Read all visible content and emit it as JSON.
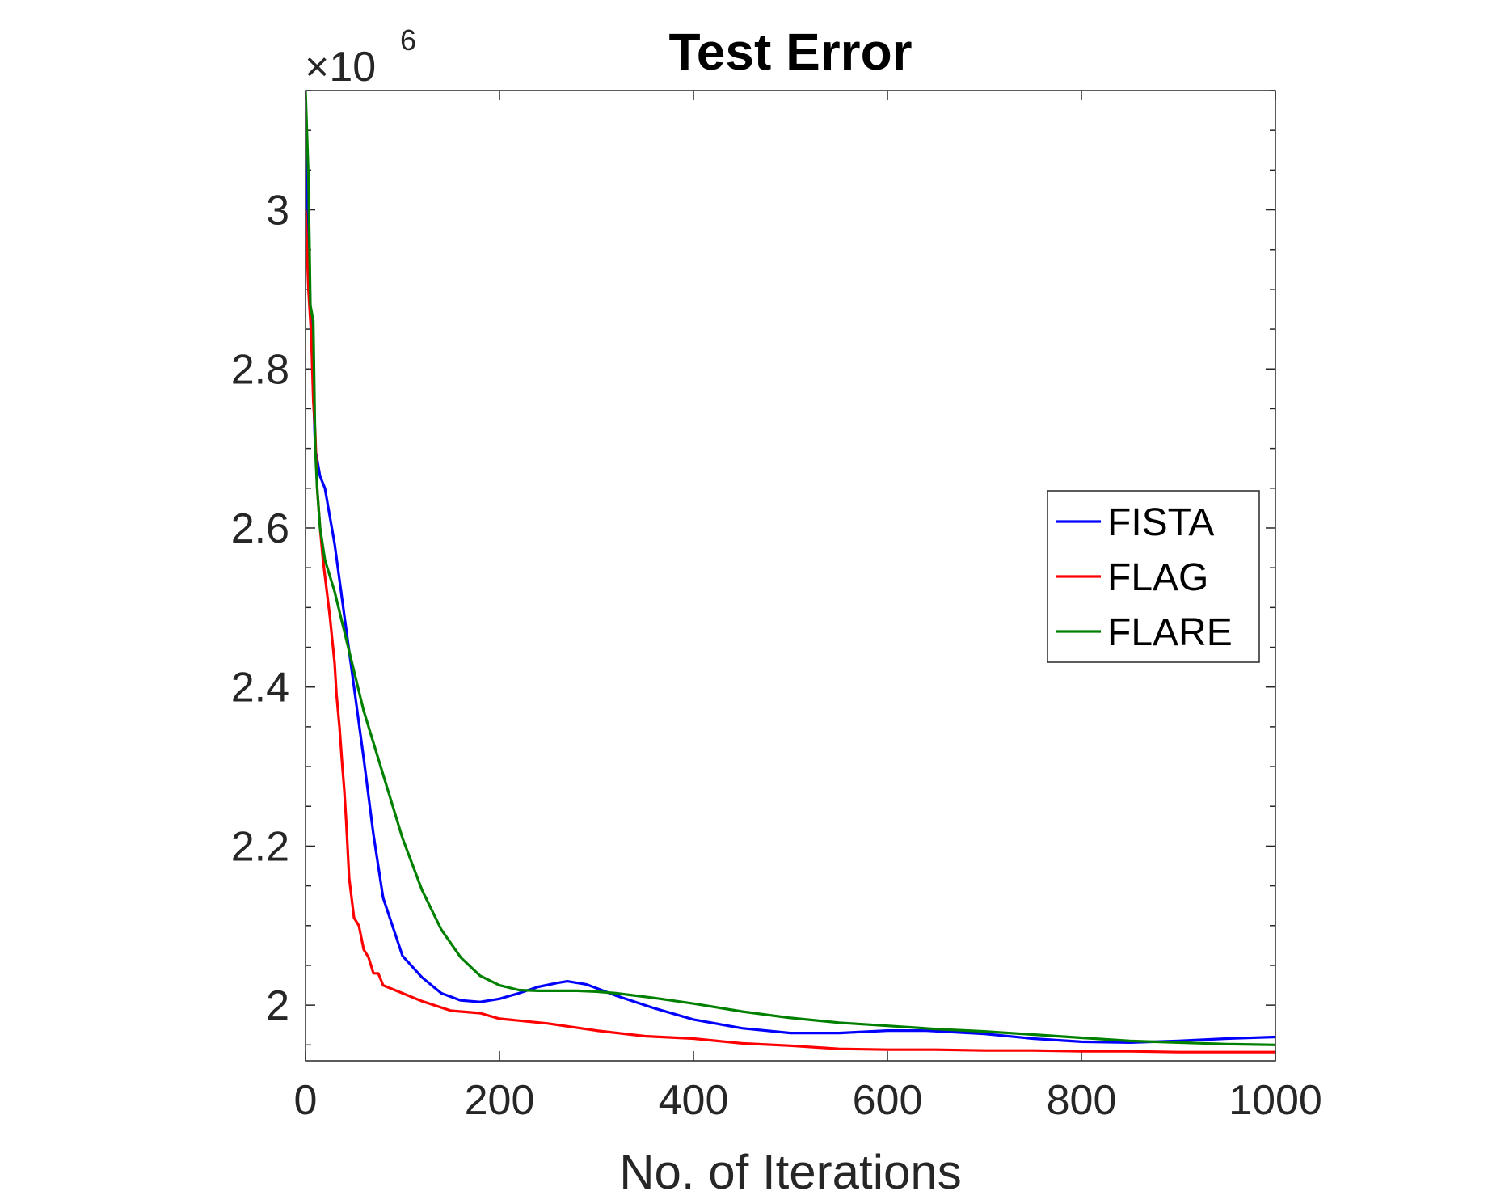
{
  "chart_data": {
    "type": "line",
    "title": "Test Error",
    "xlabel": "No. of Iterations",
    "ylabel": "",
    "xlim": [
      0,
      1000
    ],
    "ylim": [
      1930000,
      3150000
    ],
    "x_ticks": [
      0,
      200,
      400,
      600,
      800,
      1000
    ],
    "x_tick_labels": [
      "0",
      "200",
      "400",
      "600",
      "800",
      "1000"
    ],
    "y_ticks": [
      2000000,
      2200000,
      2400000,
      2600000,
      2800000,
      3000000
    ],
    "y_tick_labels": [
      "2",
      "2.2",
      "2.4",
      "2.6",
      "2.8",
      "3"
    ],
    "y_exponent": {
      "base": "×10",
      "power": "6"
    },
    "grid": false,
    "legend_position": "right",
    "series": [
      {
        "name": "FISTA",
        "color": "#0000ff",
        "x": [
          0,
          5,
          10,
          15,
          20,
          30,
          40,
          50,
          60,
          70,
          80,
          100,
          120,
          140,
          160,
          180,
          200,
          220,
          240,
          260,
          270,
          290,
          320,
          360,
          400,
          450,
          500,
          550,
          600,
          640,
          700,
          750,
          800,
          850,
          900,
          950,
          1000
        ],
        "y": [
          3070000,
          2880000,
          2700000,
          2665000,
          2650000,
          2580000,
          2490000,
          2400000,
          2310000,
          2215000,
          2135000,
          2062000,
          2035000,
          2015000,
          2006000,
          2004000,
          2008000,
          2015000,
          2023000,
          2028000,
          2030000,
          2026000,
          2012000,
          1996000,
          1982000,
          1971000,
          1965000,
          1965000,
          1968000,
          1968000,
          1964000,
          1958000,
          1954000,
          1953000,
          1955000,
          1958000,
          1960000
        ]
      },
      {
        "name": "FLAG",
        "color": "#ff0000",
        "x": [
          0,
          3,
          6,
          8,
          10,
          12,
          15,
          18,
          20,
          25,
          30,
          32,
          35,
          38,
          40,
          42,
          45,
          48,
          50,
          55,
          60,
          65,
          70,
          75,
          80,
          90,
          100,
          120,
          150,
          180,
          200,
          250,
          300,
          350,
          400,
          450,
          500,
          550,
          600,
          650,
          700,
          750,
          800,
          850,
          900,
          950,
          1000
        ],
        "y": [
          3000000,
          2900000,
          2840000,
          2760000,
          2720000,
          2650000,
          2600000,
          2560000,
          2540000,
          2490000,
          2430000,
          2390000,
          2350000,
          2300000,
          2270000,
          2230000,
          2160000,
          2130000,
          2110000,
          2100000,
          2070000,
          2060000,
          2040000,
          2040000,
          2025000,
          2020000,
          2015000,
          2005000,
          1993000,
          1990000,
          1983000,
          1977000,
          1968000,
          1961000,
          1958000,
          1952000,
          1949000,
          1945000,
          1944000,
          1944000,
          1943000,
          1943000,
          1942000,
          1942000,
          1941000,
          1941000,
          1941000
        ]
      },
      {
        "name": "FLARE",
        "color": "#008000",
        "x": [
          0,
          3,
          5,
          8,
          10,
          12,
          15,
          20,
          30,
          40,
          50,
          60,
          80,
          100,
          120,
          140,
          160,
          180,
          200,
          220,
          240,
          260,
          280,
          300,
          320,
          360,
          400,
          450,
          500,
          550,
          600,
          650,
          700,
          750,
          800,
          850,
          900,
          950,
          1000
        ],
        "y": [
          3150000,
          3040000,
          2880000,
          2860000,
          2700000,
          2650000,
          2600000,
          2560000,
          2520000,
          2470000,
          2420000,
          2370000,
          2290000,
          2210000,
          2145000,
          2095000,
          2060000,
          2037000,
          2025000,
          2019000,
          2018000,
          2018000,
          2018000,
          2017000,
          2015000,
          2009000,
          2002000,
          1992000,
          1984000,
          1978000,
          1974000,
          1970000,
          1967000,
          1963000,
          1959000,
          1955000,
          1953000,
          1951000,
          1950000
        ]
      }
    ]
  }
}
